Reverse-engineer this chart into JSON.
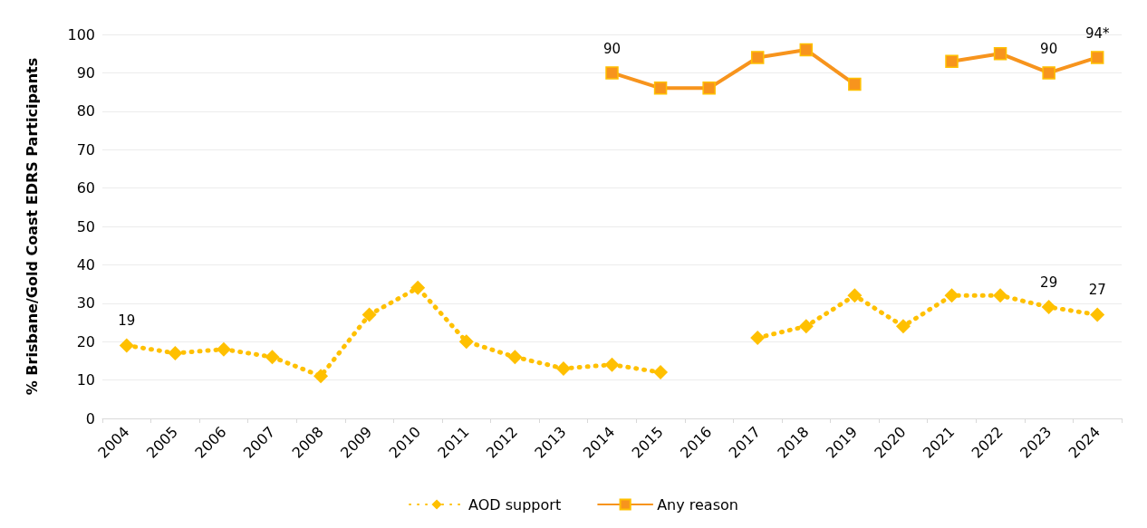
{
  "chart_data": {
    "type": "line",
    "ylabel": "% Brisbane/Gold Coast EDRS Participants",
    "categories": [
      "2004",
      "2005",
      "2006",
      "2007",
      "2008",
      "2009",
      "2010",
      "2011",
      "2012",
      "2013",
      "2014",
      "2015",
      "2016",
      "2017",
      "2018",
      "2019",
      "2020",
      "2021",
      "2022",
      "2023",
      "2024"
    ],
    "series": [
      {
        "name": "AOD support",
        "color": "#ffc000",
        "marker": "diamond",
        "line_style": "dotted",
        "values": [
          19,
          17,
          18,
          16,
          11,
          27,
          34,
          20,
          16,
          13,
          14,
          12,
          null,
          21,
          24,
          32,
          24,
          32,
          32,
          29,
          27
        ],
        "value_labels": [
          "19",
          null,
          null,
          null,
          null,
          null,
          null,
          null,
          null,
          null,
          null,
          null,
          null,
          null,
          null,
          null,
          null,
          null,
          null,
          "29",
          "27"
        ]
      },
      {
        "name": "Any reason",
        "color": "#f7941d",
        "marker": "square",
        "line_style": "solid",
        "values": [
          null,
          null,
          null,
          null,
          null,
          null,
          null,
          null,
          null,
          null,
          90,
          86,
          86,
          94,
          96,
          87,
          null,
          93,
          95,
          90,
          94
        ],
        "value_labels": [
          null,
          null,
          null,
          null,
          null,
          null,
          null,
          null,
          null,
          null,
          "90",
          null,
          null,
          null,
          null,
          null,
          null,
          null,
          null,
          "90",
          "94*"
        ]
      }
    ],
    "ylim": [
      0,
      100
    ],
    "yticks": [
      0,
      10,
      20,
      30,
      40,
      50,
      60,
      70,
      80,
      90,
      100
    ],
    "grid": "y",
    "legend": "bottom"
  }
}
